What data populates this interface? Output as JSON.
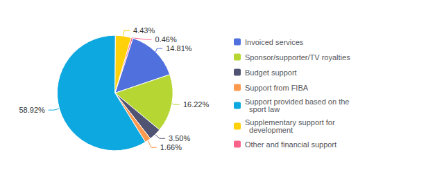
{
  "chart_data": {
    "type": "pie",
    "categories": [
      "Invoiced services",
      "Sponsor/supporter/TV royalties",
      "Budget support",
      "Support from FIBA",
      "Support provided based on the\n  sport law",
      "Supplementary support for\n  development",
      "Other and financial support"
    ],
    "values": [
      14.81,
      16.22,
      3.5,
      1.66,
      58.92,
      4.43,
      0.46
    ],
    "value_labels": [
      "14.81%",
      "16.22%",
      "3.50%",
      "1.66%",
      "58.92%",
      "4.43%",
      "0.46%"
    ],
    "data_labels": true,
    "legend": "right"
  }
}
